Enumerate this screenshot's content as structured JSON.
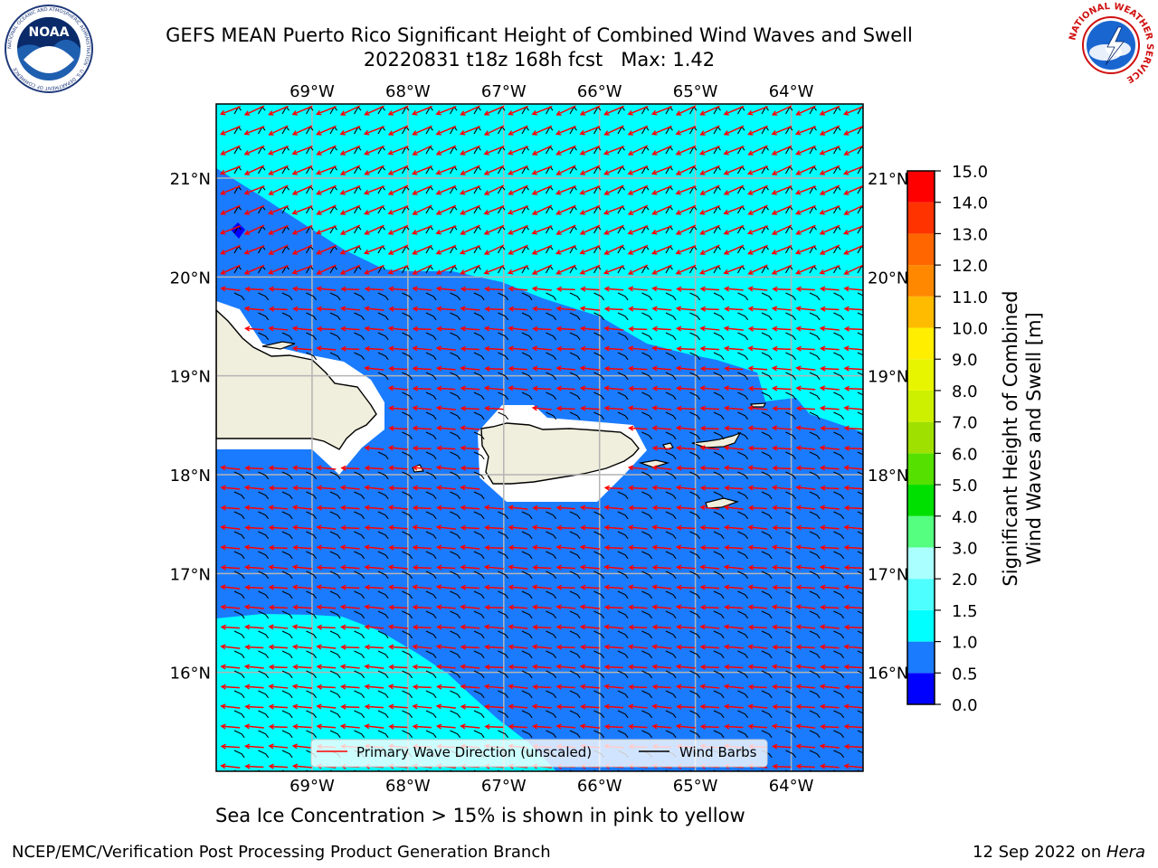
{
  "header": {
    "title_line1": "GEFS MEAN Puerto Rico Significant Height of Combined Wind Waves and Swell",
    "title_line2": "20220831 t18z 168h fcst   Max: 1.42"
  },
  "logos": {
    "left": {
      "icon": "noaa-logo-icon",
      "text": "NOAA",
      "ring_text": "NATIONAL OCEANIC AND ATMOSPHERIC ADMINISTRATION · U.S. DEPARTMENT OF COMMERCE"
    },
    "right": {
      "icon": "nws-logo-icon",
      "ring_text": "NATIONAL WEATHER SERVICE"
    }
  },
  "map": {
    "lon_range": [
      -70.0,
      -63.25
    ],
    "lat_range": [
      15.0,
      21.75
    ],
    "lon_ticks": [
      {
        "value": -69,
        "label": "69°W"
      },
      {
        "value": -68,
        "label": "68°W"
      },
      {
        "value": -67,
        "label": "67°W"
      },
      {
        "value": -66,
        "label": "66°W"
      },
      {
        "value": -65,
        "label": "65°W"
      },
      {
        "value": -64,
        "label": "64°W"
      }
    ],
    "lat_ticks": [
      {
        "value": 21,
        "label": "21°N"
      },
      {
        "value": 20,
        "label": "20°N"
      },
      {
        "value": 19,
        "label": "19°N"
      },
      {
        "value": 18,
        "label": "18°N"
      },
      {
        "value": 17,
        "label": "17°N"
      },
      {
        "value": 16,
        "label": "16°N"
      }
    ],
    "grid": true,
    "legend": {
      "placement": "bottom-center",
      "entries": [
        {
          "label": "Primary Wave Direction (unscaled)",
          "color": "#ff0000"
        },
        {
          "label": "Wind Barbs",
          "color": "#000000"
        }
      ]
    },
    "fill_colors": {
      "land": "#f0eedc",
      "masked": "#ffffff",
      "low": "#1a7bff",
      "mid": "#00ffff",
      "peak": "#0000ff"
    }
  },
  "colorbar": {
    "label_line1": "Significant Height of Combined",
    "label_line2": "Wind Waves and Swell [m]",
    "levels": [
      {
        "value": "0.0",
        "color": "#0000ff"
      },
      {
        "value": "0.5",
        "color": "#1a7bff"
      },
      {
        "value": "1.0",
        "color": "#00ffff"
      },
      {
        "value": "1.5",
        "color": "#4dffff"
      },
      {
        "value": "2.0",
        "color": "#aaffff"
      },
      {
        "value": "3.0",
        "color": "#55ff80"
      },
      {
        "value": "4.0",
        "color": "#00e000"
      },
      {
        "value": "5.0",
        "color": "#55e000"
      },
      {
        "value": "6.0",
        "color": "#a0e000"
      },
      {
        "value": "7.0",
        "color": "#ccf000"
      },
      {
        "value": "8.0",
        "color": "#e8f500"
      },
      {
        "value": "9.0",
        "color": "#ffee00"
      },
      {
        "value": "10.0",
        "color": "#ffbb00"
      },
      {
        "value": "11.0",
        "color": "#ff8800"
      },
      {
        "value": "12.0",
        "color": "#ff6600"
      },
      {
        "value": "13.0",
        "color": "#ff3300"
      },
      {
        "value": "14.0",
        "color": "#ff0000"
      },
      {
        "value": "15.0",
        "color": ""
      }
    ]
  },
  "footer": {
    "note": "Sea Ice Concentration > 15% is shown in pink to yellow",
    "left": "NCEP/EMC/Verification Post Processing Product Generation Branch",
    "date": "12 Sep 2022 on ",
    "host": "Hera"
  }
}
